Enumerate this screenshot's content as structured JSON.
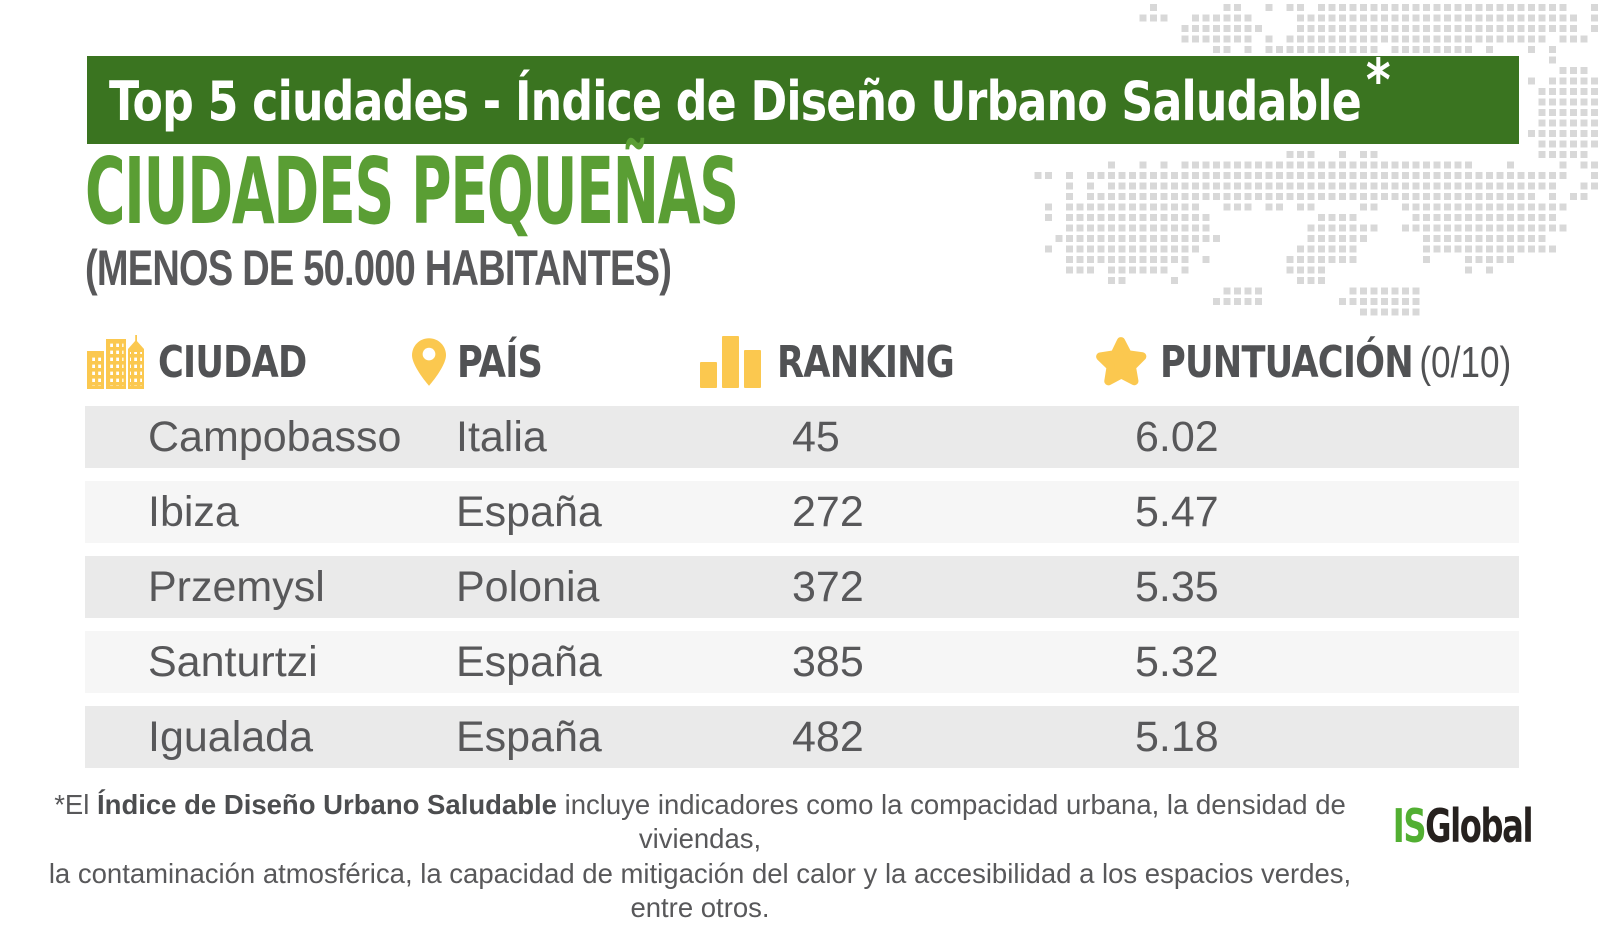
{
  "banner": {
    "title": "Top 5 ciudades - Índice de Diseño Urbano Saludable",
    "asterisk": "*"
  },
  "heading": {
    "title": "CIUDADES PEQUEÑAS",
    "subtitle": "(MENOS DE 50.000 HABITANTES)"
  },
  "table": {
    "columns": [
      {
        "label": "CIUDAD",
        "icon": "buildings-icon"
      },
      {
        "label": "PAÍS",
        "icon": "map-pin-icon"
      },
      {
        "label": "RANKING",
        "icon": "bar-chart-icon"
      },
      {
        "label": "PUNTUACIÓN",
        "suffix": "(0/10)",
        "icon": "star-icon"
      }
    ],
    "rows": [
      {
        "city": "Campobasso",
        "country": "Italia",
        "ranking": "45",
        "score": "6.02"
      },
      {
        "city": "Ibiza",
        "country": "España",
        "ranking": "272",
        "score": "5.47"
      },
      {
        "city": "Przemysl",
        "country": "Polonia",
        "ranking": "372",
        "score": "5.35"
      },
      {
        "city": "Santurtzi",
        "country": "España",
        "ranking": "385",
        "score": "5.32"
      },
      {
        "city": "Igualada",
        "country": "España",
        "ranking": "482",
        "score": "5.18"
      }
    ]
  },
  "chart_data": {
    "type": "table",
    "title": "Top 5 ciudades - Índice de Diseño Urbano Saludable",
    "subtitle": "CIUDADES PEQUEÑAS (MENOS DE 50.000 HABITANTES)",
    "columns": [
      "CIUDAD",
      "PAÍS",
      "RANKING",
      "PUNTUACIÓN (0/10)"
    ],
    "rows": [
      [
        "Campobasso",
        "Italia",
        45,
        6.02
      ],
      [
        "Ibiza",
        "España",
        272,
        5.47
      ],
      [
        "Przemysl",
        "Polonia",
        372,
        5.35
      ],
      [
        "Santurtzi",
        "España",
        385,
        5.32
      ],
      [
        "Igualada",
        "España",
        482,
        5.18
      ]
    ],
    "score_scale": "0/10"
  },
  "footnote": {
    "prefix": "*El ",
    "bold": "Índice de Diseño Urbano Saludable",
    "line1_rest": " incluye indicadores como la compacidad urbana, la densidad de viviendas,",
    "line2": "la contaminación atmosférica, la capacidad de mitigación del calor y la accesibilidad a los espacios verdes, entre otros."
  },
  "logo": {
    "part1": "IS",
    "part2": "Global"
  },
  "colors": {
    "green-banner": "#3A7420",
    "green-heading": "#5A9E34",
    "green-logo": "#52AF32",
    "yellow": "#FBC84F",
    "text-dark": "#515254",
    "text-gray": "#58585A",
    "row-dark": "#EAEAEA",
    "row-light": "#F6F6F6",
    "map-dot": "#D8D8D8",
    "logo-black": "#26211E"
  }
}
